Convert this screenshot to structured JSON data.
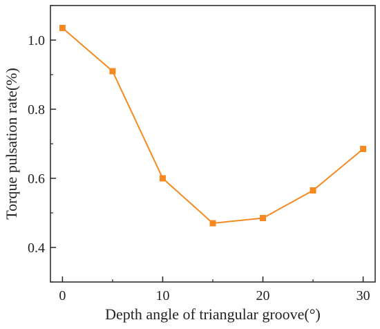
{
  "chart_data": {
    "type": "line",
    "xlabel": "Depth angle of triangular groove(°)",
    "ylabel": "Torque pulsation rate(%)",
    "xlim": [
      -1.2,
      31.2
    ],
    "ylim": [
      0.3,
      1.1
    ],
    "xticks": [
      0,
      10,
      20,
      30
    ],
    "yticks": [
      0.4,
      0.6,
      0.8,
      1.0
    ],
    "xtick_labels": [
      "0",
      "10",
      "20",
      "30"
    ],
    "ytick_labels": [
      "0.4",
      "0.6",
      "0.8",
      "1.0"
    ],
    "grid": false,
    "series": [
      {
        "x": [
          0,
          5,
          10,
          15,
          20,
          25,
          30
        ],
        "y": [
          1.035,
          0.91,
          0.6,
          0.47,
          0.485,
          0.565,
          0.685
        ],
        "color": "#F5891F",
        "marker": "square"
      }
    ]
  }
}
